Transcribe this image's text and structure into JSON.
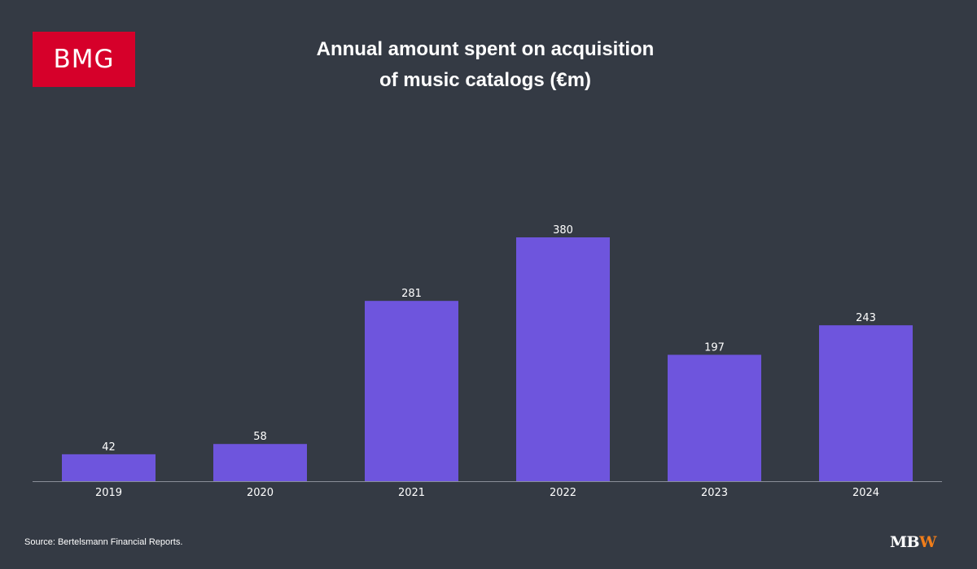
{
  "brand": {
    "logo_text": "BMG",
    "logo_color": "#d6002a"
  },
  "chart_data": {
    "type": "bar",
    "title": "Annual amount spent on acquisition of music catalogs (€m)",
    "title_lines": [
      "Annual amount spent on acquisition",
      "of music catalogs (€m)"
    ],
    "categories": [
      "2019",
      "2020",
      "2021",
      "2022",
      "2023",
      "2024"
    ],
    "values": [
      42,
      58,
      281,
      380,
      197,
      243
    ],
    "data_labels": [
      "42",
      "58",
      "281",
      "380",
      "197",
      "243"
    ],
    "ylim": [
      0,
      380
    ],
    "grid": false,
    "legend": "none",
    "bar_color": "#6e55dd",
    "axis_color": "#8a8f98",
    "background": "#343a44"
  },
  "footer": {
    "source": "Source: Bertelsmann Financial Reports.",
    "publisher_logo_mb": "MB",
    "publisher_logo_w": "W",
    "publisher_accent": "#f07d1a"
  }
}
